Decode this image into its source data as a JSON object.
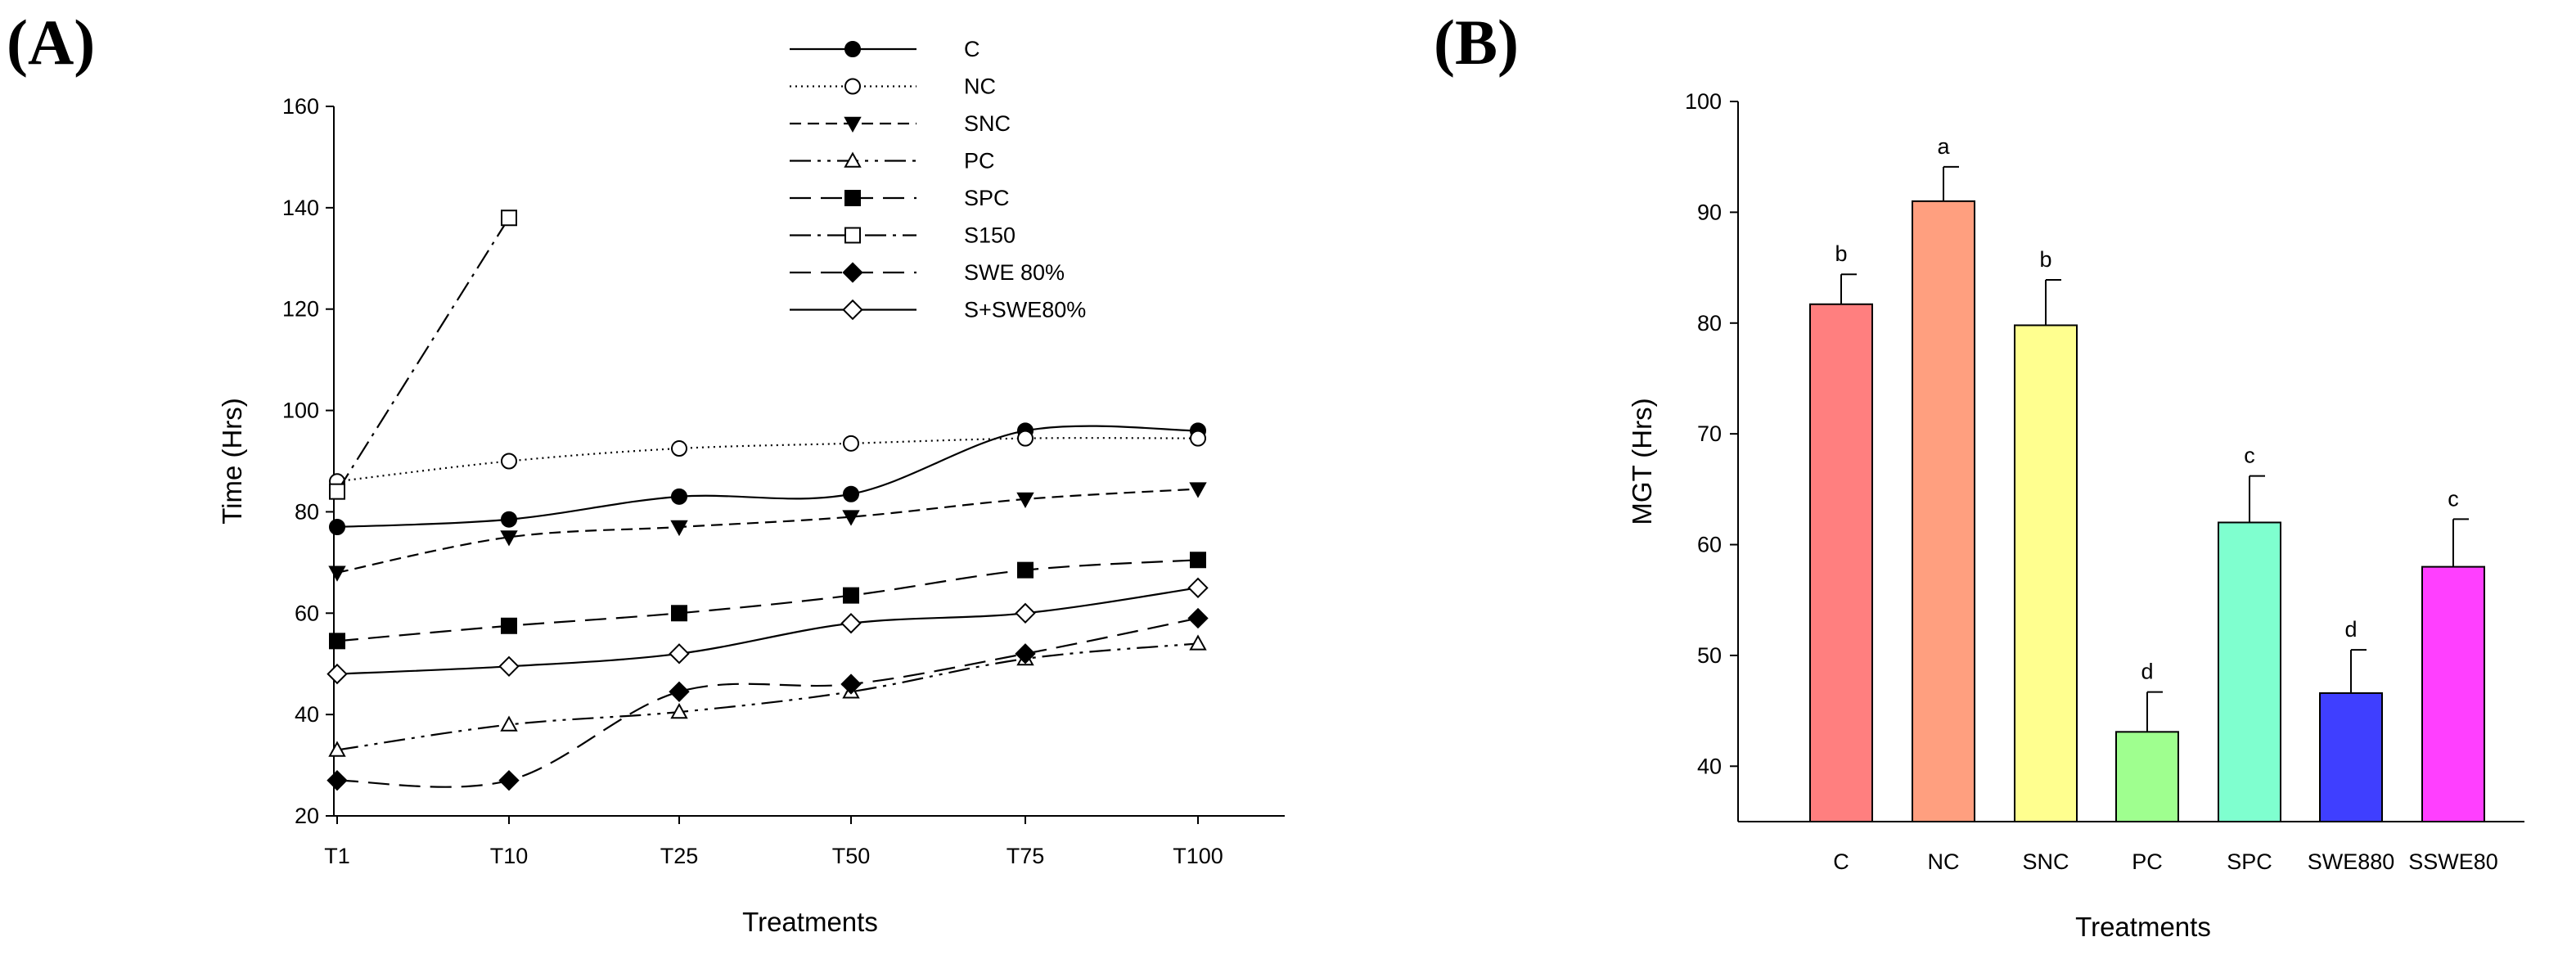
{
  "panels": {
    "a": {
      "label": "(A)"
    },
    "b": {
      "label": "(B)"
    }
  },
  "chart_data": [
    {
      "type": "line",
      "panel": "(A)",
      "title": "",
      "xlabel": "Treatments",
      "ylabel": "Time (Hrs)",
      "ylim": [
        20,
        160
      ],
      "yticks": [
        "20",
        "40",
        "60",
        "80",
        "100",
        "120",
        "140",
        "160"
      ],
      "categories": [
        "T1",
        "T10",
        "T25",
        "T50",
        "T75",
        "T100"
      ],
      "legend_position": "top-right",
      "series": [
        {
          "name": "C",
          "values": [
            77,
            78.5,
            83,
            83.5,
            96,
            96
          ],
          "marker": "filled-circle",
          "dash": "solid"
        },
        {
          "name": "NC",
          "values": [
            86,
            90,
            92.5,
            93.5,
            94.5,
            94.5
          ],
          "marker": "open-circle",
          "dash": "dotted"
        },
        {
          "name": "SNC",
          "values": [
            68,
            75,
            77,
            79,
            82.5,
            84.5
          ],
          "marker": "filled-triangle-down",
          "dash": "short-dash"
        },
        {
          "name": " PC",
          "values": [
            33,
            38,
            40.5,
            44.5,
            51,
            54
          ],
          "marker": "open-triangle-up",
          "dash": "dash-dot-dot"
        },
        {
          "name": "SPC",
          "values": [
            54.5,
            57.5,
            60,
            63.5,
            68.5,
            70.5
          ],
          "marker": "filled-square",
          "dash": "long-dash"
        },
        {
          "name": "S150",
          "values": [
            84,
            138,
            null,
            null,
            null,
            null
          ],
          "marker": "open-square",
          "dash": "dash-dot"
        },
        {
          "name": "SWE 80%",
          "values": [
            27,
            27,
            44.5,
            46,
            52,
            59
          ],
          "marker": "filled-diamond",
          "dash": "long-dash"
        },
        {
          "name": "S+SWE80%",
          "values": [
            48,
            49.5,
            52,
            58,
            60,
            65
          ],
          "marker": "open-diamond",
          "dash": "solid"
        }
      ]
    },
    {
      "type": "bar",
      "panel": "(B)",
      "title": "",
      "xlabel": "Treatments",
      "ylabel": "MGT (Hrs)",
      "ylim": [
        35,
        100
      ],
      "yticks": [
        "40",
        "50",
        "60",
        "70",
        "80",
        "90",
        "100"
      ],
      "categories": [
        "C",
        "NC",
        "SNC",
        "PC",
        "SPC",
        "SWE880",
        "SSWE80"
      ],
      "values": [
        81.7,
        91.0,
        79.8,
        43.1,
        62.0,
        46.6,
        58.0
      ],
      "errors": [
        2.7,
        3.1,
        4.1,
        3.6,
        4.2,
        3.9,
        4.3
      ],
      "significance": [
        "b",
        "a",
        "b",
        "d",
        "c",
        "d",
        "c"
      ],
      "colors": [
        "#ff7f7f",
        "#ff9f7f",
        "#ffff8f",
        "#9fff8f",
        "#7fffcf",
        "#3f3fff",
        "#ff3fff"
      ]
    }
  ]
}
